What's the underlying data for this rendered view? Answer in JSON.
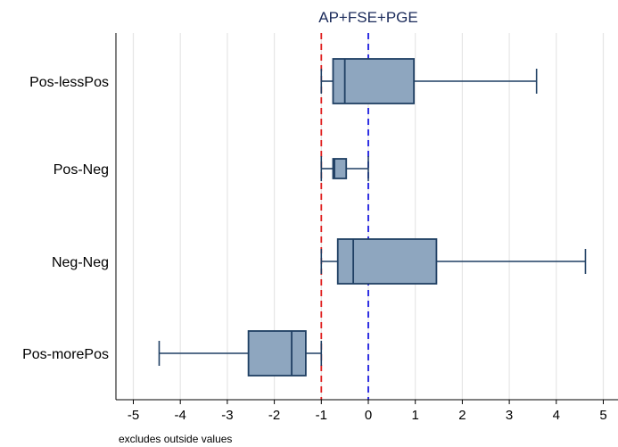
{
  "chart_data": {
    "type": "boxplot",
    "orientation": "horizontal",
    "title": "AP+FSE+PGE",
    "note": "excludes outside values",
    "x_ticks": [
      -5,
      -4,
      -3,
      -2,
      -1,
      0,
      1,
      2,
      3,
      4,
      5
    ],
    "xlim": [
      -5.2,
      5.1
    ],
    "grid": "vertical",
    "reference_lines": [
      {
        "x": -1,
        "color": "#e02020",
        "style": "dashed"
      },
      {
        "x": 0,
        "color": "#1a1ae0",
        "style": "dashed"
      }
    ],
    "box_fill": "#8ea6bf",
    "box_stroke": "#1f3f63",
    "categories": [
      {
        "label": "Pos-lessPos",
        "whisker_low": -1.0,
        "q1": -0.75,
        "median": -0.5,
        "q3": 0.97,
        "whisker_high": 3.58
      },
      {
        "label": "Pos-Neg",
        "whisker_low": -1.0,
        "q1": -0.75,
        "median": -0.72,
        "q3": -0.47,
        "whisker_high": 0.0
      },
      {
        "label": "Neg-Neg",
        "whisker_low": -1.0,
        "q1": -0.65,
        "median": -0.32,
        "q3": 1.45,
        "whisker_high": 4.62
      },
      {
        "label": "Pos-morePos",
        "whisker_low": -4.45,
        "q1": -2.55,
        "median": -1.63,
        "q3": -1.33,
        "whisker_high": -1.0
      }
    ]
  }
}
